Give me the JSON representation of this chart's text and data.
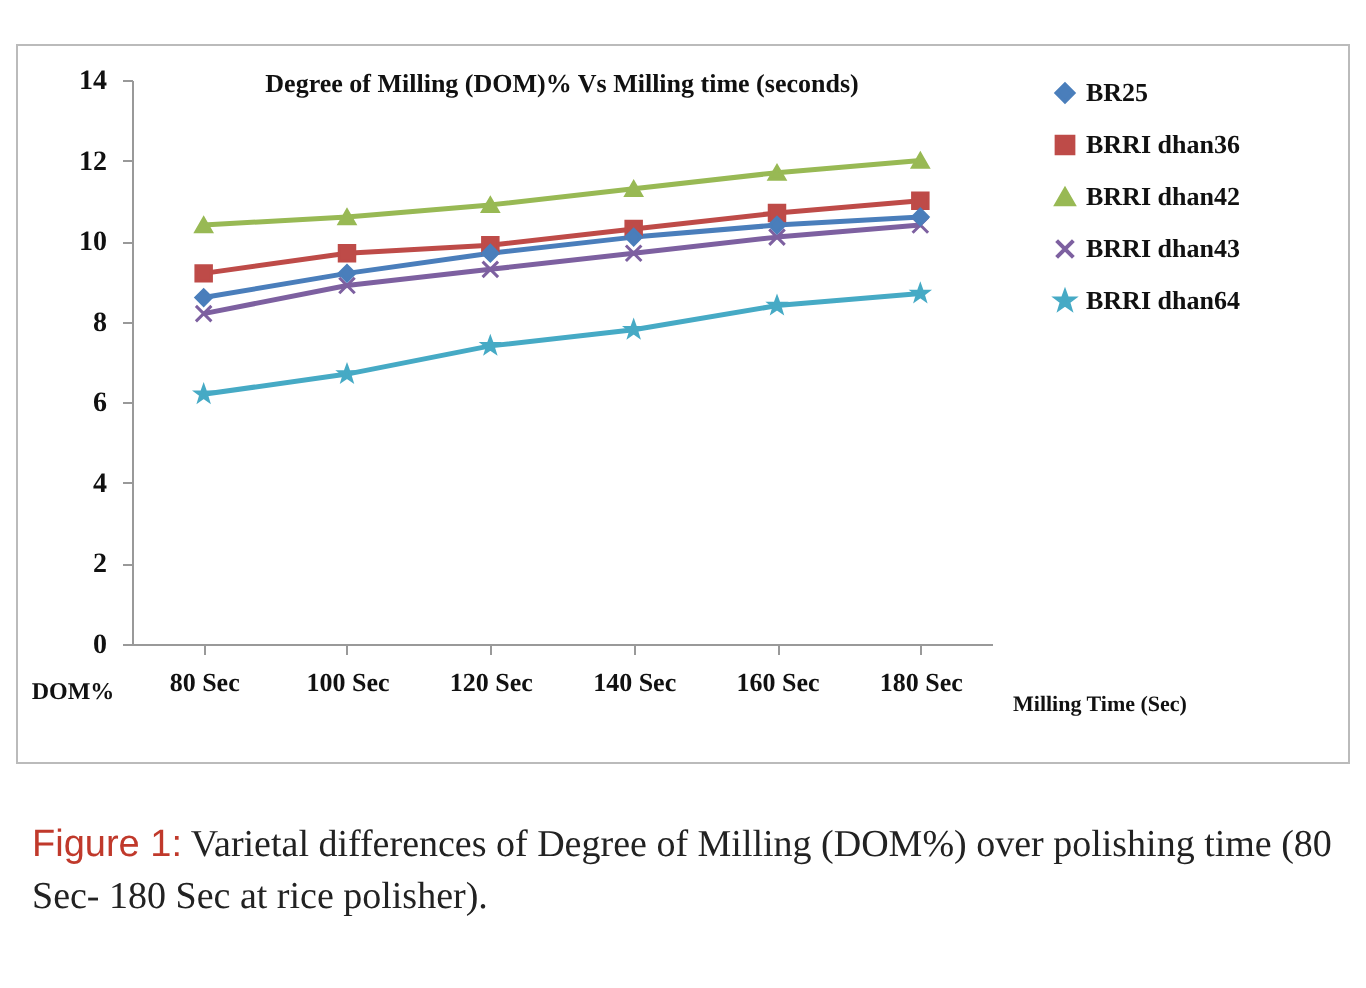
{
  "chart_data": {
    "type": "line",
    "title": "Degree of Milling (DOM)% Vs Milling time (seconds)",
    "xlabel": "Milling Time (Sec)",
    "ylabel": "DOM%",
    "categories": [
      "80 Sec",
      "100 Sec",
      "120 Sec",
      "140 Sec",
      "160 Sec",
      "180 Sec"
    ],
    "series": [
      {
        "name": "BR25",
        "color": "#4a7ebb",
        "marker": "diamond",
        "values": [
          8.6,
          9.2,
          9.7,
          10.1,
          10.4,
          10.6
        ]
      },
      {
        "name": "BRRI dhan36",
        "color": "#be4b48",
        "marker": "square",
        "values": [
          9.2,
          9.7,
          9.9,
          10.3,
          10.7,
          11.0
        ]
      },
      {
        "name": "BRRI dhan42",
        "color": "#98b954",
        "marker": "triangle",
        "values": [
          10.4,
          10.6,
          10.9,
          11.3,
          11.7,
          12.0
        ]
      },
      {
        "name": "BRRI dhan43",
        "color": "#7d60a0",
        "marker": "cross",
        "values": [
          8.2,
          8.9,
          9.3,
          9.7,
          10.1,
          10.4
        ]
      },
      {
        "name": "BRRI dhan64",
        "color": "#46aac5",
        "marker": "star",
        "values": [
          6.2,
          6.7,
          7.4,
          7.8,
          8.4,
          8.7
        ]
      }
    ],
    "ylim": [
      0,
      14
    ],
    "yticks": [
      0,
      2,
      4,
      6,
      8,
      10,
      12,
      14
    ],
    "grid": false,
    "legend": "right",
    "line_style": "solid",
    "annotations": [
      "Figure 1: Varietal differences of Degree of Milling (DOM%) over polishing time (80 Sec- 180 Sec at rice polisher)."
    ]
  }
}
